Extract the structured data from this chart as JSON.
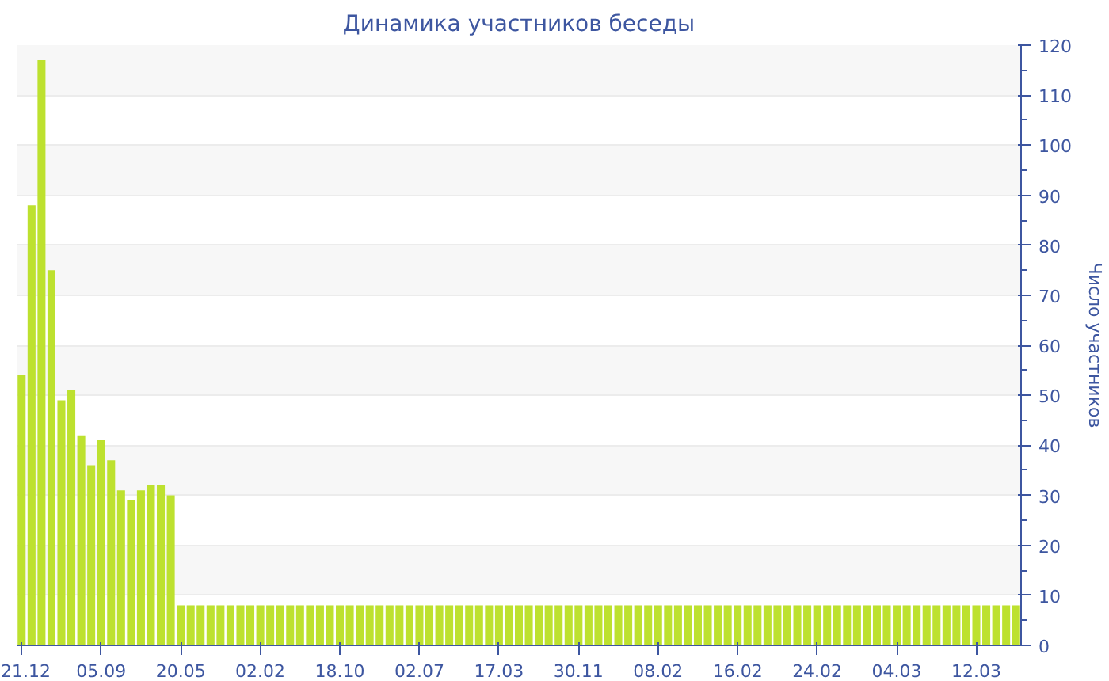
{
  "chart_data": {
    "type": "bar",
    "title": "Динамика участников беседы",
    "ylabel": "Число участников",
    "color": "#bde12f",
    "categories": [
      "21.12",
      null,
      null,
      null,
      null,
      null,
      null,
      null,
      "05.09",
      null,
      null,
      null,
      null,
      null,
      null,
      null,
      "20.05",
      null,
      null,
      null,
      null,
      null,
      null,
      null,
      "02.02",
      null,
      null,
      null,
      null,
      null,
      null,
      null,
      "18.10",
      null,
      null,
      null,
      null,
      null,
      null,
      null,
      "02.07",
      null,
      null,
      null,
      null,
      null,
      null,
      null,
      "17.03",
      null,
      null,
      null,
      null,
      null,
      null,
      null,
      "30.11",
      null,
      null,
      null,
      null,
      null,
      null,
      null,
      "08.02",
      null,
      null,
      null,
      null,
      null,
      null,
      null,
      "16.02",
      null,
      null,
      null,
      null,
      null,
      null,
      null,
      "24.02",
      null,
      null,
      null,
      null,
      null,
      null,
      null,
      "04.03",
      null,
      null,
      null,
      null,
      null,
      null,
      null,
      "12.03",
      null,
      null,
      null,
      null
    ],
    "values": [
      54,
      88,
      117,
      75,
      49,
      51,
      42,
      36,
      41,
      37,
      31,
      29,
      31,
      32,
      32,
      30,
      8,
      8,
      8,
      8,
      8,
      8,
      8,
      8,
      8,
      8,
      8,
      8,
      8,
      8,
      8,
      8,
      8,
      8,
      8,
      8,
      8,
      8,
      8,
      8,
      8,
      8,
      8,
      8,
      8,
      8,
      8,
      8,
      8,
      8,
      8,
      8,
      8,
      8,
      8,
      8,
      8,
      8,
      8,
      8,
      8,
      8,
      8,
      8,
      8,
      8,
      8,
      8,
      8,
      8,
      8,
      8,
      8,
      8,
      8,
      8,
      8,
      8,
      8,
      8,
      8,
      8,
      8,
      8,
      8,
      8,
      8,
      8,
      8,
      8,
      8,
      8,
      8,
      8,
      8,
      8,
      8,
      8,
      8,
      8,
      8
    ],
    "ylim": [
      0,
      120
    ],
    "yticks": [
      0,
      10,
      20,
      30,
      40,
      50,
      60,
      70,
      80,
      90,
      100,
      110,
      120
    ],
    "grid": "y"
  }
}
